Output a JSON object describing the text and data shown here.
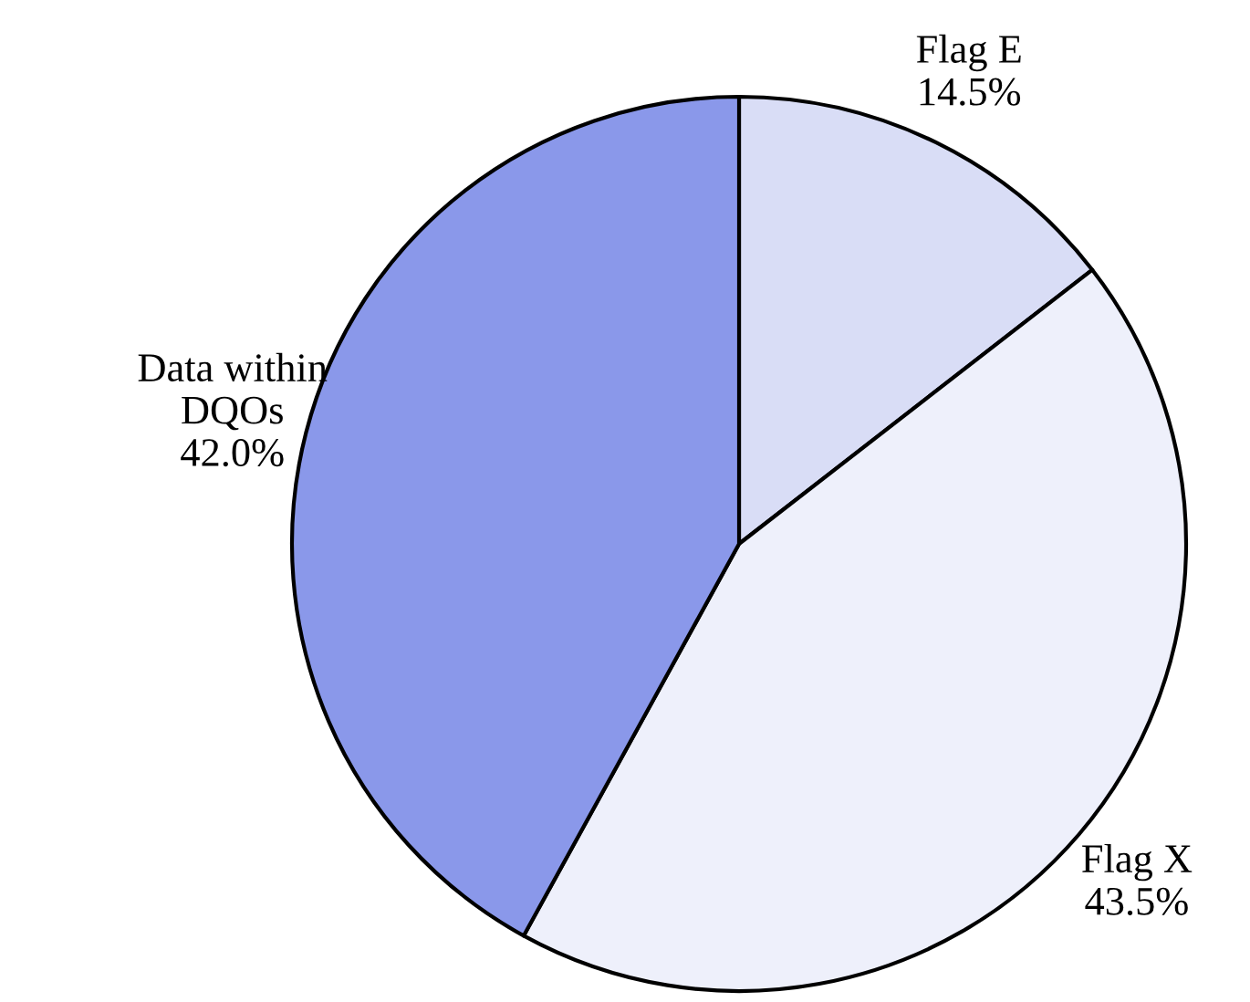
{
  "chart_data": {
    "type": "pie",
    "categories": [
      "Flag E",
      "Flag X",
      "Data within\nDQOs"
    ],
    "values": [
      14.5,
      43.5,
      42.0
    ],
    "colors": [
      "#d9ddf6",
      "#eef0fb",
      "#8a98ea"
    ],
    "value_labels": [
      "14.5%",
      "43.5%",
      "42.0%"
    ],
    "legend": false
  }
}
